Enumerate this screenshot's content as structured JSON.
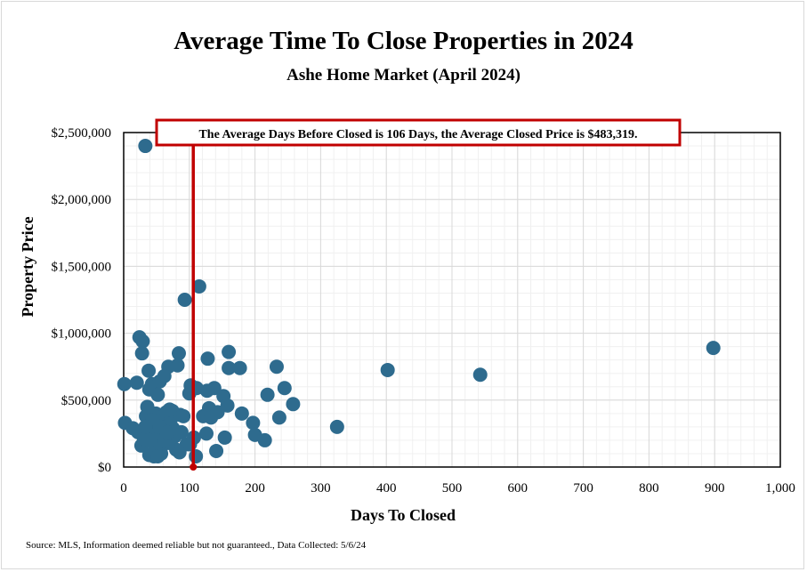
{
  "title": "Average Time To Close Properties in 2024",
  "subtitle": "Ashe Home Market (April 2024)",
  "source": "Source: MLS, Information deemed reliable but not guaranteed., Data Collected: 5/6/24",
  "annotation": "The Average Days Before Closed is 106 Days, the Average Closed Price is $483,319.",
  "colors": {
    "points": "#2e6b8e",
    "average_line": "#c00000",
    "grid": "#d9d9d9",
    "minor_grid": "#f0f0f0"
  },
  "chart_data": {
    "type": "scatter",
    "title": "Average Time To Close Properties in 2024",
    "subtitle": "Ashe Home Market (April 2024)",
    "xlabel": "Days To Closed",
    "ylabel": "Property Price",
    "xlim": [
      0,
      1000
    ],
    "ylim": [
      0,
      2500000
    ],
    "x_ticks": [
      0,
      100,
      200,
      300,
      400,
      500,
      600,
      700,
      800,
      900,
      1000
    ],
    "x_tick_labels": [
      "0",
      "100",
      "200",
      "300",
      "400",
      "500",
      "600",
      "700",
      "800",
      "900",
      "1,000"
    ],
    "y_ticks": [
      0,
      500000,
      1000000,
      1500000,
      2000000,
      2500000
    ],
    "y_tick_labels": [
      "$0",
      "$500,000",
      "$1,000,000",
      "$1,500,000",
      "$2,000,000",
      "$2,500,000"
    ],
    "grid": true,
    "average_days": 106,
    "average_price": 483319,
    "points": [
      [
        33,
        2400000
      ],
      [
        115,
        1350000
      ],
      [
        93,
        1250000
      ],
      [
        898,
        890000
      ],
      [
        402,
        725000
      ],
      [
        543,
        690000
      ],
      [
        325,
        300000
      ],
      [
        24,
        970000
      ],
      [
        29,
        940000
      ],
      [
        28,
        850000
      ],
      [
        84,
        850000
      ],
      [
        160,
        860000
      ],
      [
        128,
        810000
      ],
      [
        38,
        720000
      ],
      [
        68,
        750000
      ],
      [
        82,
        760000
      ],
      [
        160,
        740000
      ],
      [
        177,
        740000
      ],
      [
        233,
        750000
      ],
      [
        1,
        620000
      ],
      [
        20,
        630000
      ],
      [
        43,
        620000
      ],
      [
        55,
        640000
      ],
      [
        62,
        680000
      ],
      [
        102,
        610000
      ],
      [
        111,
        590000
      ],
      [
        127,
        570000
      ],
      [
        138,
        590000
      ],
      [
        152,
        530000
      ],
      [
        39,
        580000
      ],
      [
        52,
        540000
      ],
      [
        100,
        550000
      ],
      [
        219,
        540000
      ],
      [
        245,
        590000
      ],
      [
        258,
        470000
      ],
      [
        158,
        460000
      ],
      [
        130,
        440000
      ],
      [
        121,
        380000
      ],
      [
        133,
        370000
      ],
      [
        143,
        410000
      ],
      [
        180,
        400000
      ],
      [
        197,
        330000
      ],
      [
        237,
        370000
      ],
      [
        200,
        240000
      ],
      [
        215,
        200000
      ],
      [
        154,
        220000
      ],
      [
        126,
        250000
      ],
      [
        107,
        220000
      ],
      [
        141,
        120000
      ],
      [
        101,
        170000
      ],
      [
        110,
        80000
      ],
      [
        2,
        330000
      ],
      [
        14,
        290000
      ],
      [
        22,
        260000
      ],
      [
        27,
        160000
      ],
      [
        34,
        380000
      ],
      [
        36,
        450000
      ],
      [
        41,
        230000
      ],
      [
        44,
        320000
      ],
      [
        47,
        280000
      ],
      [
        49,
        400000
      ],
      [
        51,
        180000
      ],
      [
        53,
        340000
      ],
      [
        56,
        120000
      ],
      [
        58,
        250000
      ],
      [
        60,
        380000
      ],
      [
        63,
        300000
      ],
      [
        65,
        410000
      ],
      [
        72,
        360000
      ],
      [
        74,
        420000
      ],
      [
        78,
        230000
      ],
      [
        80,
        130000
      ],
      [
        86,
        390000
      ],
      [
        88,
        260000
      ],
      [
        91,
        380000
      ],
      [
        96,
        170000
      ],
      [
        46,
        80000
      ],
      [
        39,
        90000
      ],
      [
        57,
        100000
      ],
      [
        68,
        180000
      ],
      [
        75,
        290000
      ],
      [
        31,
        210000
      ],
      [
        48,
        140000
      ],
      [
        62,
        200000
      ],
      [
        85,
        110000
      ],
      [
        52,
        80000
      ],
      [
        44,
        350000
      ],
      [
        70,
        430000
      ],
      [
        33,
        300000
      ],
      [
        55,
        300000
      ],
      [
        66,
        260000
      ],
      [
        40,
        200000
      ]
    ]
  }
}
